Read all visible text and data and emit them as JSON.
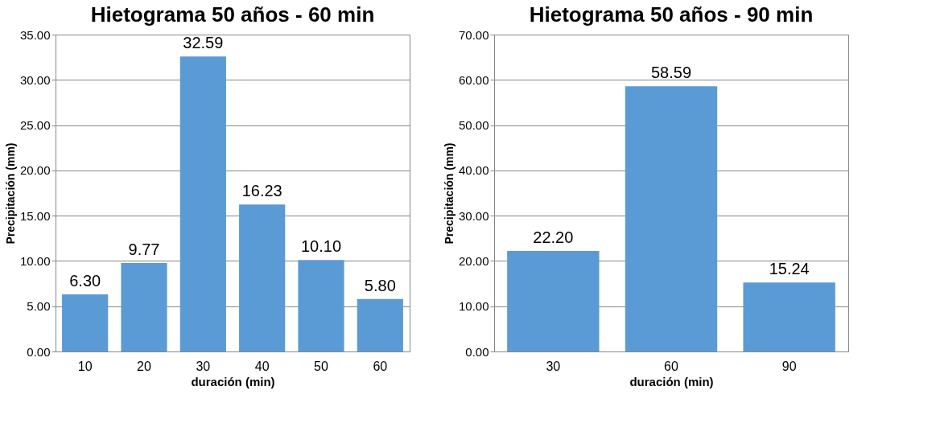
{
  "chart_data": [
    {
      "type": "bar",
      "title": "Hietograma  50 años   - 60 min",
      "xlabel": "duración (min)",
      "ylabel": "Precipitación (mm)",
      "categories": [
        "10",
        "20",
        "30",
        "40",
        "50",
        "60"
      ],
      "values": [
        6.3,
        9.77,
        32.59,
        16.23,
        10.1,
        5.8
      ],
      "value_labels": [
        "6.30",
        "9.77",
        "32.59",
        "16.23",
        "10.10",
        "5.80"
      ],
      "color": "#5b9bd5",
      "ylim": [
        0,
        35
      ],
      "yticks": [
        {
          "value": 0,
          "label": "0.00"
        },
        {
          "value": 5,
          "label": "5.00"
        },
        {
          "value": 10,
          "label": "10.00"
        },
        {
          "value": 15,
          "label": "15.00"
        },
        {
          "value": 20,
          "label": "20.00"
        },
        {
          "value": 25,
          "label": "25.00"
        },
        {
          "value": 30,
          "label": "30.00"
        },
        {
          "value": 35,
          "label": "35.00"
        }
      ],
      "grid": "y"
    },
    {
      "type": "bar",
      "title": "Hietograma  50 años   - 90 min",
      "xlabel": "duración (min)",
      "ylabel": "Precipitación (mm)",
      "categories": [
        "30",
        "60",
        "90"
      ],
      "values": [
        22.2,
        58.59,
        15.24
      ],
      "value_labels": [
        "22.20",
        "58.59",
        "15.24"
      ],
      "color": "#5b9bd5",
      "ylim": [
        0,
        70
      ],
      "yticks": [
        {
          "value": 0,
          "label": "0.00"
        },
        {
          "value": 10,
          "label": "10.00"
        },
        {
          "value": 20,
          "label": "20.00"
        },
        {
          "value": 30,
          "label": "30.00"
        },
        {
          "value": 40,
          "label": "40.00"
        },
        {
          "value": 50,
          "label": "50.00"
        },
        {
          "value": 60,
          "label": "60.00"
        },
        {
          "value": 70,
          "label": "70.00"
        }
      ],
      "grid": "y"
    }
  ]
}
